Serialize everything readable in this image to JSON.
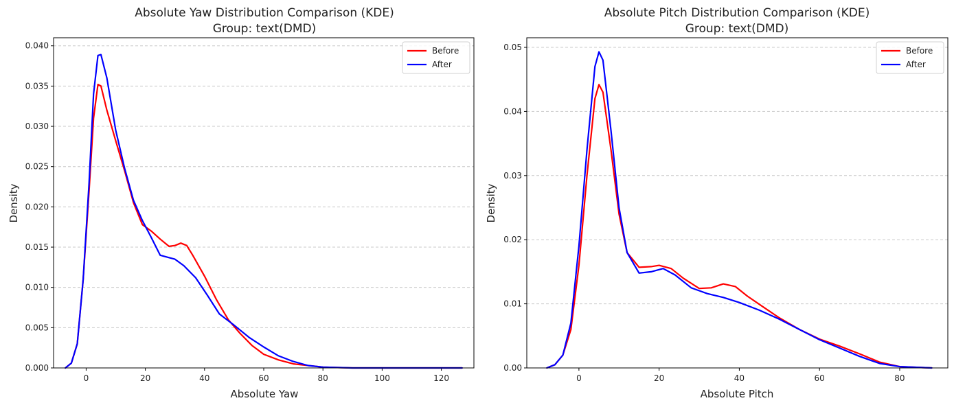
{
  "chart_data": [
    {
      "type": "line",
      "title": "Absolute Yaw Distribution Comparison (KDE)",
      "subtitle": "Group: text(DMD)",
      "xlabel": "Absolute Yaw",
      "ylabel": "Density",
      "xlim": [
        -11,
        131
      ],
      "ylim": [
        0,
        0.041
      ],
      "xticks": [
        0,
        20,
        40,
        60,
        80,
        100,
        120
      ],
      "yticks": [
        0.0,
        0.005,
        0.01,
        0.015,
        0.02,
        0.025,
        0.03,
        0.035,
        0.04
      ],
      "ytick_labels": [
        "0.000",
        "0.005",
        "0.010",
        "0.015",
        "0.020",
        "0.025",
        "0.030",
        "0.035",
        "0.040"
      ],
      "grid": "y-dashed",
      "legend_position": "upper-right",
      "series": [
        {
          "name": "Before",
          "color": "#ff0000",
          "points": [
            [
              -7,
              0.0
            ],
            [
              -5,
              0.0006
            ],
            [
              -3,
              0.003
            ],
            [
              -1,
              0.011
            ],
            [
              1,
              0.022
            ],
            [
              2.5,
              0.031
            ],
            [
              4,
              0.0352
            ],
            [
              5,
              0.035
            ],
            [
              7,
              0.032
            ],
            [
              10,
              0.0282
            ],
            [
              13,
              0.0245
            ],
            [
              16,
              0.0205
            ],
            [
              19,
              0.0178
            ],
            [
              22,
              0.017
            ],
            [
              25,
              0.016
            ],
            [
              28,
              0.0151
            ],
            [
              30,
              0.0152
            ],
            [
              32,
              0.0155
            ],
            [
              34,
              0.0152
            ],
            [
              36,
              0.014
            ],
            [
              40,
              0.0114
            ],
            [
              44,
              0.0085
            ],
            [
              48,
              0.006
            ],
            [
              52,
              0.0043
            ],
            [
              56,
              0.0028
            ],
            [
              60,
              0.0017
            ],
            [
              65,
              0.001
            ],
            [
              70,
              0.0005
            ],
            [
              80,
              0.0001
            ],
            [
              90,
              0.0
            ],
            [
              127,
              0.0
            ]
          ]
        },
        {
          "name": "After",
          "color": "#0000ff",
          "points": [
            [
              -7,
              0.0
            ],
            [
              -5,
              0.0006
            ],
            [
              -3,
              0.003
            ],
            [
              -1,
              0.011
            ],
            [
              1,
              0.023
            ],
            [
              2.5,
              0.034
            ],
            [
              4,
              0.0388
            ],
            [
              5,
              0.0389
            ],
            [
              7,
              0.036
            ],
            [
              10,
              0.0295
            ],
            [
              13,
              0.0248
            ],
            [
              16,
              0.0208
            ],
            [
              19,
              0.0183
            ],
            [
              22,
              0.0162
            ],
            [
              25,
              0.014
            ],
            [
              28,
              0.0137
            ],
            [
              30,
              0.0135
            ],
            [
              33,
              0.0127
            ],
            [
              37,
              0.0112
            ],
            [
              41,
              0.009
            ],
            [
              45,
              0.0067
            ],
            [
              50,
              0.0053
            ],
            [
              55,
              0.0038
            ],
            [
              60,
              0.0026
            ],
            [
              65,
              0.0015
            ],
            [
              70,
              0.0008
            ],
            [
              75,
              0.0003
            ],
            [
              80,
              0.0001
            ],
            [
              90,
              0.0
            ],
            [
              127,
              0.0
            ]
          ]
        }
      ]
    },
    {
      "type": "line",
      "title": "Absolute Pitch Distribution Comparison (KDE)",
      "subtitle": "Group: text(DMD)",
      "xlabel": "Absolute Pitch",
      "ylabel": "Density",
      "xlim": [
        -13,
        92
      ],
      "ylim": [
        0,
        0.0515
      ],
      "xticks": [
        0,
        20,
        40,
        60,
        80
      ],
      "yticks": [
        0.0,
        0.01,
        0.02,
        0.03,
        0.04,
        0.05
      ],
      "ytick_labels": [
        "0.00",
        "0.01",
        "0.02",
        "0.03",
        "0.04",
        "0.05"
      ],
      "grid": "y-dashed",
      "legend_position": "upper-right",
      "series": [
        {
          "name": "Before",
          "color": "#ff0000",
          "points": [
            [
              -8,
              0.0
            ],
            [
              -6,
              0.0005
            ],
            [
              -4,
              0.002
            ],
            [
              -2,
              0.006
            ],
            [
              0,
              0.016
            ],
            [
              2,
              0.03
            ],
            [
              4,
              0.042
            ],
            [
              5,
              0.0442
            ],
            [
              6,
              0.043
            ],
            [
              8,
              0.034
            ],
            [
              10,
              0.024
            ],
            [
              12,
              0.018
            ],
            [
              15,
              0.0157
            ],
            [
              18,
              0.0158
            ],
            [
              20,
              0.016
            ],
            [
              23,
              0.0155
            ],
            [
              26,
              0.014
            ],
            [
              30,
              0.0124
            ],
            [
              33,
              0.0125
            ],
            [
              36,
              0.0131
            ],
            [
              39,
              0.0127
            ],
            [
              42,
              0.0112
            ],
            [
              46,
              0.0095
            ],
            [
              50,
              0.0078
            ],
            [
              55,
              0.006
            ],
            [
              60,
              0.0045
            ],
            [
              65,
              0.0034
            ],
            [
              70,
              0.0022
            ],
            [
              75,
              0.0009
            ],
            [
              80,
              0.0002
            ],
            [
              88,
              0.0
            ]
          ]
        },
        {
          "name": "After",
          "color": "#0000ff",
          "points": [
            [
              -8,
              0.0
            ],
            [
              -6,
              0.0005
            ],
            [
              -4,
              0.002
            ],
            [
              -2,
              0.007
            ],
            [
              0,
              0.019
            ],
            [
              2,
              0.034
            ],
            [
              4,
              0.047
            ],
            [
              5,
              0.0493
            ],
            [
              6,
              0.048
            ],
            [
              8,
              0.037
            ],
            [
              10,
              0.025
            ],
            [
              12,
              0.018
            ],
            [
              15,
              0.0148
            ],
            [
              18,
              0.015
            ],
            [
              21,
              0.0155
            ],
            [
              24,
              0.0145
            ],
            [
              28,
              0.0125
            ],
            [
              32,
              0.0116
            ],
            [
              36,
              0.011
            ],
            [
              40,
              0.0102
            ],
            [
              45,
              0.009
            ],
            [
              50,
              0.0076
            ],
            [
              55,
              0.006
            ],
            [
              60,
              0.0044
            ],
            [
              65,
              0.0031
            ],
            [
              70,
              0.0018
            ],
            [
              75,
              0.0007
            ],
            [
              80,
              0.0002
            ],
            [
              88,
              0.0
            ]
          ]
        }
      ]
    }
  ]
}
